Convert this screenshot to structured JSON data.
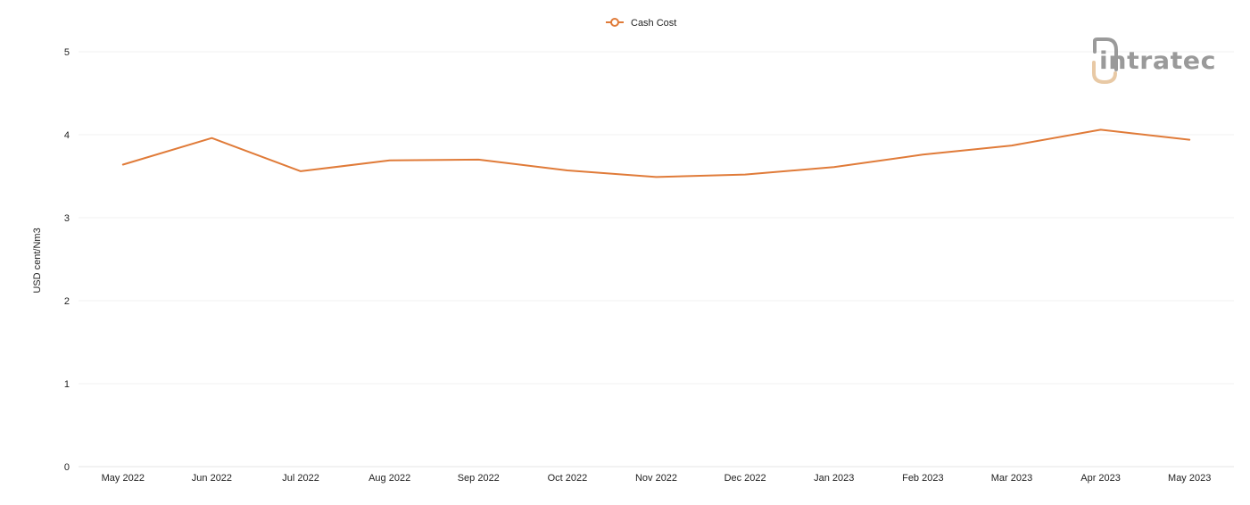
{
  "chart_data": {
    "type": "line",
    "title": "",
    "xlabel": "",
    "ylabel": "USD cent/Nm3",
    "categories": [
      "May 2022",
      "Jun 2022",
      "Jul 2022",
      "Aug 2022",
      "Sep 2022",
      "Oct 2022",
      "Nov 2022",
      "Dec 2022",
      "Jan 2023",
      "Feb 2023",
      "Mar 2023",
      "Apr 2023",
      "May 2023"
    ],
    "series": [
      {
        "name": "Cash Cost",
        "color": "#e07b39",
        "values": [
          3.64,
          3.96,
          3.56,
          3.69,
          3.7,
          3.57,
          3.49,
          3.52,
          3.61,
          3.76,
          3.87,
          4.06,
          3.94
        ]
      }
    ],
    "ylim": [
      0,
      5
    ],
    "yticks": [
      0,
      1,
      2,
      3,
      4,
      5
    ],
    "grid": true,
    "legend_position": "top-center"
  },
  "legend": {
    "label": "Cash Cost",
    "icon": "circle-line-marker-icon"
  },
  "watermark": {
    "text": "intratec",
    "icon": "intratec-logo-icon"
  },
  "colors": {
    "series": "#e07b39",
    "grid": "#f1f1f1",
    "logo_gray": "#9a9a9a",
    "logo_accent": "#e8c9a5"
  }
}
